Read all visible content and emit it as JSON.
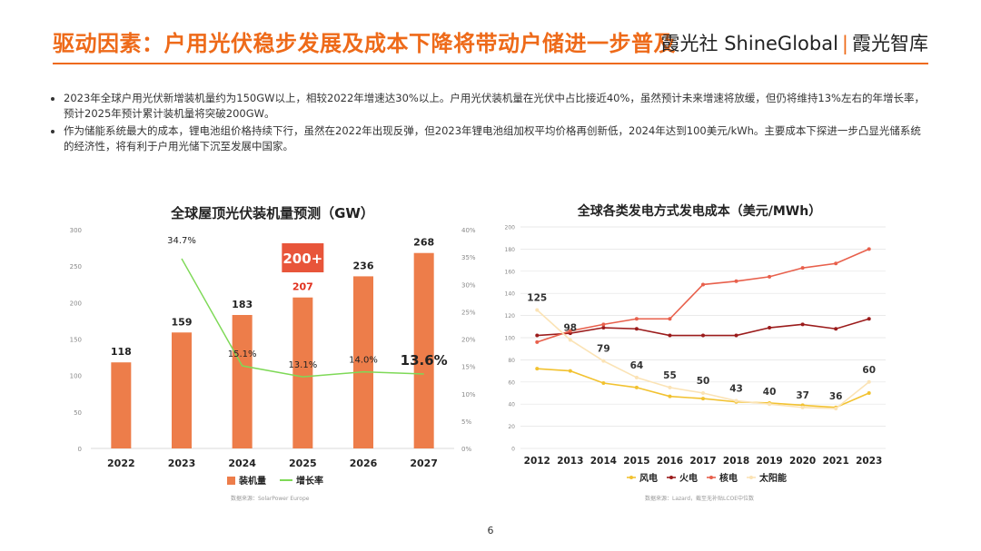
{
  "header": {
    "title": "驱动因素：户用光伏稳步发展及成本下降将带动户储进一步普及",
    "brand_left": "霞光社 ShineGlobal",
    "brand_sep": "|",
    "brand_right": "霞光智库"
  },
  "bullets": [
    "2023年全球户用光伏新增装机量约为150GW以上，相较2022年增速达30%以上。户用光伏装机量在光伏中占比接近40%，虽然预计未来增速将放缓，但仍将维持13%左右的年增长率，预计2025年预计累计装机量将突破200GW。",
    "作为储能系统最大的成本，锂电池组价格持续下行，虽然在2022年出现反弹，但2023年锂电池组加权平均价格再创新低，2024年达到100美元/kWh。主要成本下探进一步凸显光储系统的经济性，将有利于户用光储下沉至发展中国家。"
  ],
  "page_number": "6",
  "chart_data": [
    {
      "type": "bar",
      "title": "全球屋顶光伏装机量预测（GW）",
      "categories": [
        "2022",
        "2023",
        "2024",
        "2025",
        "2026",
        "2027"
      ],
      "series": [
        {
          "name": "装机量",
          "type": "bar",
          "values": [
            118,
            159,
            183,
            207,
            236,
            268
          ],
          "color": "#ed7d4a"
        },
        {
          "name": "增长率",
          "type": "line",
          "axis": "right",
          "values": [
            null,
            34.7,
            15.1,
            13.1,
            14.0,
            13.6
          ],
          "labels": [
            "",
            "34.7%",
            "15.1%",
            "13.1%",
            "14.0%",
            "13.6%"
          ],
          "color": "#7ed957"
        }
      ],
      "ylim": [
        0,
        300
      ],
      "yticks": [
        0,
        50,
        100,
        150,
        200,
        250,
        300
      ],
      "y2lim": [
        0,
        40
      ],
      "y2ticks": [
        "0%",
        "5%",
        "10%",
        "15%",
        "20%",
        "25%",
        "30%",
        "35%",
        "40%"
      ],
      "callout": "200+",
      "source": "数据来源：SolarPower Europe",
      "legend_position": "bottom"
    },
    {
      "type": "line",
      "title": "全球各类发电方式发电成本（美元/MWh）",
      "x": [
        "2012",
        "2013",
        "2014",
        "2015",
        "2016",
        "2017",
        "2018",
        "2019",
        "2020",
        "2021",
        "2023"
      ],
      "ylim": [
        0,
        200
      ],
      "yticks": [
        0,
        20,
        40,
        60,
        80,
        100,
        120,
        140,
        160,
        180,
        200
      ],
      "series": [
        {
          "name": "风电",
          "values": [
            72,
            70,
            59,
            55,
            47,
            45,
            42,
            41,
            39,
            37,
            50
          ],
          "color": "#f2c230"
        },
        {
          "name": "火电",
          "values": [
            102,
            104,
            109,
            108,
            102,
            102,
            102,
            109,
            112,
            108,
            117
          ],
          "color": "#9b1b1b"
        },
        {
          "name": "核电",
          "values": [
            96,
            106,
            112,
            117,
            117,
            148,
            151,
            155,
            163,
            167,
            180
          ],
          "color": "#e8604c"
        },
        {
          "name": "太阳能",
          "values": [
            125,
            98,
            79,
            64,
            55,
            50,
            43,
            40,
            37,
            36,
            60
          ],
          "color": "#fbe3b5"
        }
      ],
      "labels": [
        "125",
        "98",
        "79",
        "64",
        "55",
        "50",
        "43",
        "40",
        "37",
        "36",
        "60"
      ],
      "source": "数据来源：Lazard，截至无补贴LCOE中位数",
      "legend_position": "bottom"
    }
  ]
}
